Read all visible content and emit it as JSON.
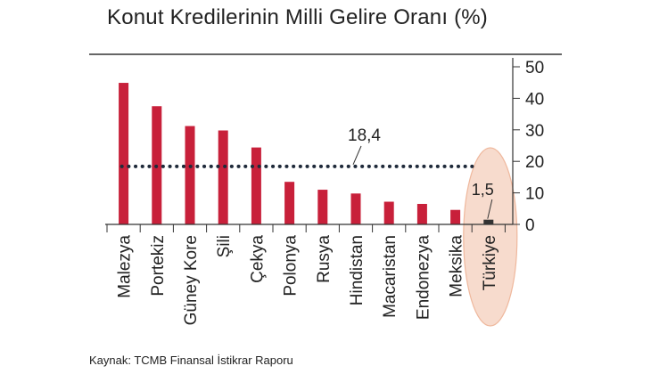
{
  "title": "Konut Kredilerinin Milli Gelire Oranı (%)",
  "source": "Kaynak: TCMB Finansal İstikrar Raporu",
  "chart_data": {
    "type": "bar",
    "categories": [
      "Malezya",
      "Portekiz",
      "Güney Kore",
      "Şili",
      "Çekya",
      "Polonya",
      "Rusya",
      "Hindistan",
      "Macaristan",
      "Endonezya",
      "Meksika",
      "Türkiye"
    ],
    "values": [
      44.9,
      37.5,
      31.2,
      29.8,
      24.4,
      13.5,
      11.0,
      9.8,
      7.2,
      6.5,
      4.6,
      1.5
    ],
    "average": {
      "value": 18.4,
      "label": "18,4"
    },
    "highlight": {
      "category": "Türkiye",
      "label": "1,5"
    },
    "yaxis": {
      "ticks": [
        0,
        10,
        20,
        30,
        40,
        50
      ],
      "position": "right"
    },
    "ylim": [
      0,
      50
    ],
    "colors": {
      "bar": "#c8203a",
      "highlight_bar": "#333333",
      "average_line": "#1f2a3a",
      "highlight_ellipse_fill": "#f6d5c4",
      "highlight_ellipse_stroke": "#efb89d"
    }
  }
}
